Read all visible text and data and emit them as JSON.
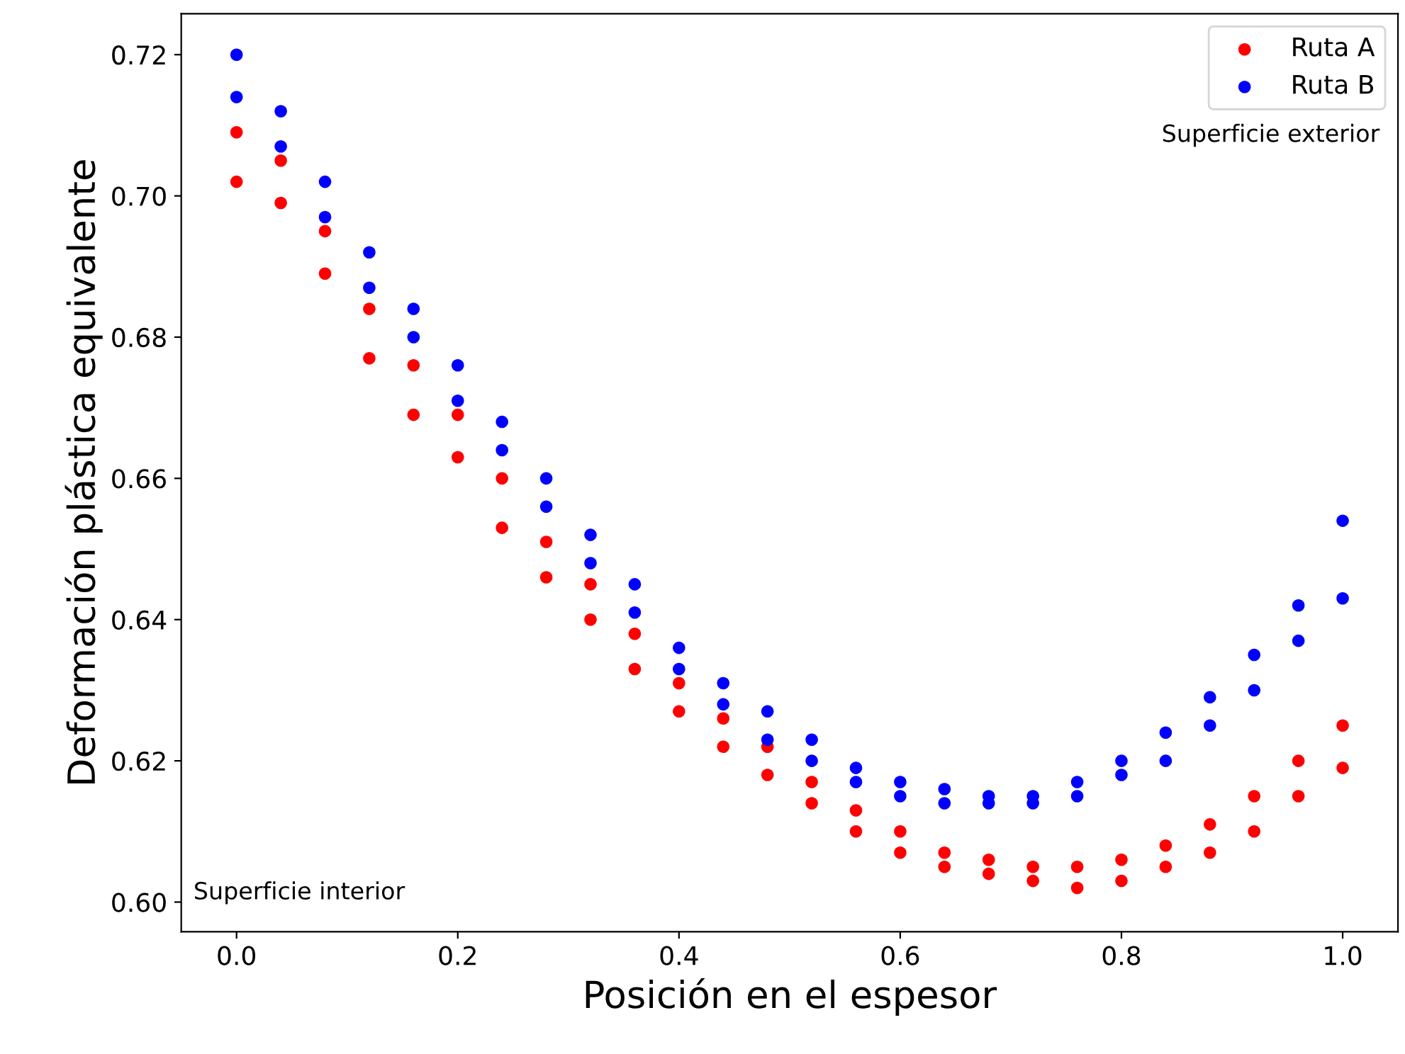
{
  "chart_data": {
    "type": "scatter",
    "xlabel": "Posición en el espesor",
    "ylabel": "Deformación plástica equivalente",
    "annotations": [
      "Superficie exterior",
      "Superficie interior"
    ],
    "xlim": [
      -0.05,
      1.05
    ],
    "ylim": [
      0.5958,
      0.7258
    ],
    "xticks": [
      {
        "value": 0.0,
        "label": "0.0"
      },
      {
        "value": 0.2,
        "label": "0.2"
      },
      {
        "value": 0.4,
        "label": "0.4"
      },
      {
        "value": 0.6,
        "label": "0.6"
      },
      {
        "value": 0.8,
        "label": "0.8"
      },
      {
        "value": 1.0,
        "label": "1.0"
      }
    ],
    "yticks": [
      {
        "value": 0.6,
        "label": "0.60"
      },
      {
        "value": 0.62,
        "label": "0.62"
      },
      {
        "value": 0.64,
        "label": "0.64"
      },
      {
        "value": 0.66,
        "label": "0.66"
      },
      {
        "value": 0.68,
        "label": "0.68"
      },
      {
        "value": 0.7,
        "label": "0.70"
      },
      {
        "value": 0.72,
        "label": "0.72"
      }
    ],
    "legend": "top right",
    "marker": "circle",
    "grid": false,
    "series": [
      {
        "name": "Ruta A",
        "color": "#ff0000",
        "x": [
          0,
          0,
          0.04,
          0.04,
          0.08,
          0.08,
          0.12,
          0.12,
          0.16,
          0.16,
          0.2,
          0.2,
          0.24,
          0.24,
          0.28,
          0.28,
          0.32,
          0.32,
          0.36,
          0.36,
          0.4,
          0.4,
          0.44,
          0.44,
          0.48,
          0.48,
          0.52,
          0.52,
          0.56,
          0.56,
          0.6,
          0.6,
          0.64,
          0.64,
          0.68,
          0.68,
          0.72,
          0.72,
          0.76,
          0.76,
          0.8,
          0.8,
          0.84,
          0.84,
          0.88,
          0.88,
          0.92,
          0.92,
          0.96,
          0.96,
          1.0,
          1.0
        ],
        "values": [
          0.709,
          0.702,
          0.705,
          0.699,
          0.695,
          0.689,
          0.684,
          0.677,
          0.676,
          0.669,
          0.669,
          0.663,
          0.66,
          0.653,
          0.651,
          0.646,
          0.645,
          0.64,
          0.638,
          0.633,
          0.631,
          0.627,
          0.626,
          0.622,
          0.622,
          0.618,
          0.617,
          0.614,
          0.613,
          0.61,
          0.61,
          0.607,
          0.607,
          0.605,
          0.606,
          0.604,
          0.605,
          0.603,
          0.605,
          0.602,
          0.606,
          0.603,
          0.608,
          0.605,
          0.611,
          0.607,
          0.615,
          0.61,
          0.62,
          0.615,
          0.625,
          0.619
        ]
      },
      {
        "name": "Ruta B",
        "color": "#0000ff",
        "x": [
          0,
          0,
          0.04,
          0.04,
          0.08,
          0.08,
          0.12,
          0.12,
          0.16,
          0.16,
          0.2,
          0.2,
          0.24,
          0.24,
          0.28,
          0.28,
          0.32,
          0.32,
          0.36,
          0.36,
          0.4,
          0.4,
          0.44,
          0.44,
          0.48,
          0.48,
          0.52,
          0.52,
          0.56,
          0.56,
          0.6,
          0.6,
          0.64,
          0.64,
          0.68,
          0.68,
          0.72,
          0.72,
          0.76,
          0.76,
          0.8,
          0.8,
          0.84,
          0.84,
          0.88,
          0.88,
          0.92,
          0.92,
          0.96,
          0.96,
          1.0,
          1.0
        ],
        "values": [
          0.72,
          0.714,
          0.712,
          0.707,
          0.702,
          0.697,
          0.692,
          0.687,
          0.684,
          0.68,
          0.676,
          0.671,
          0.668,
          0.664,
          0.66,
          0.656,
          0.652,
          0.648,
          0.645,
          0.641,
          0.636,
          0.633,
          0.631,
          0.628,
          0.627,
          0.623,
          0.623,
          0.62,
          0.619,
          0.617,
          0.617,
          0.615,
          0.616,
          0.614,
          0.615,
          0.614,
          0.615,
          0.614,
          0.617,
          0.615,
          0.62,
          0.618,
          0.624,
          0.62,
          0.629,
          0.625,
          0.635,
          0.63,
          0.642,
          0.637,
          0.654,
          0.643
        ]
      }
    ]
  }
}
